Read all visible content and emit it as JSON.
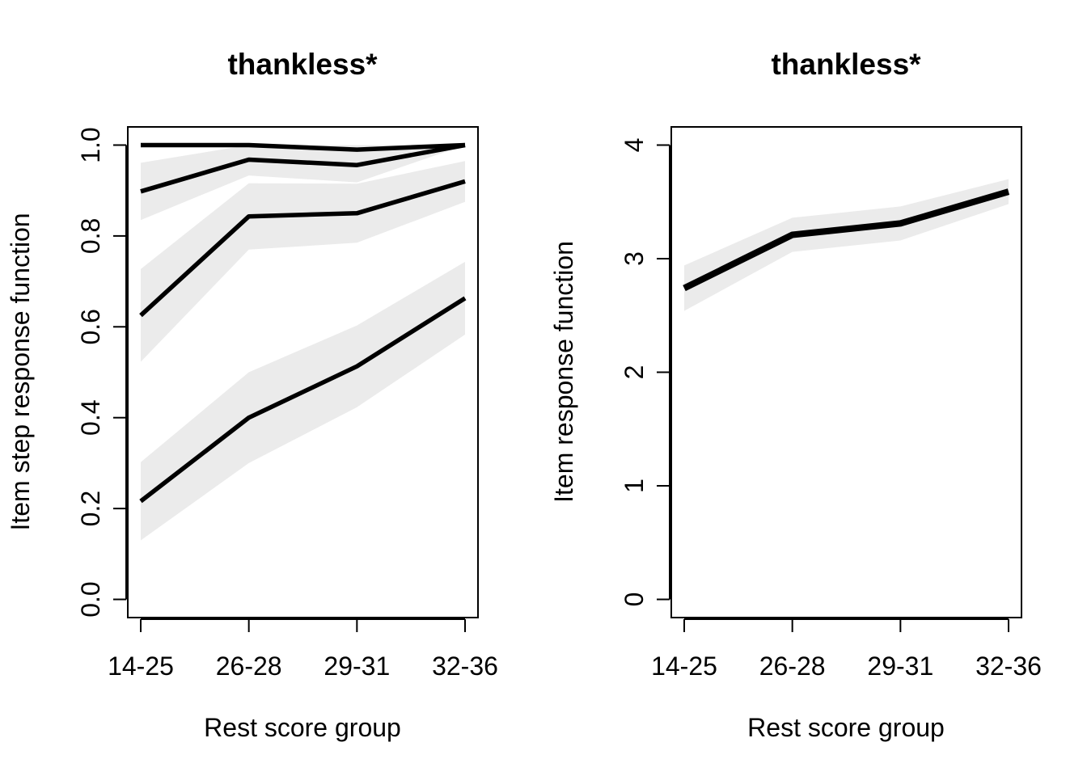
{
  "chart_data": [
    {
      "type": "line",
      "title": "thankless*",
      "xlabel": "Rest score group",
      "ylabel": "Item step response function",
      "categories": [
        "14-25",
        "26-28",
        "29-31",
        "32-36"
      ],
      "ylim": [
        -0.04,
        1.04
      ],
      "yticks": [
        "0.0",
        "0.2",
        "0.4",
        "0.6",
        "0.8",
        "1.0"
      ],
      "ytick_values": [
        0,
        0.2,
        0.4,
        0.6,
        0.8,
        1.0
      ],
      "confidence_bands": true,
      "series": [
        {
          "values": [
            1.0,
            1.0,
            0.99,
            1.0
          ],
          "band_lower": [
            1.0,
            0.995,
            0.985,
            1.0
          ],
          "band_upper": [
            1.0,
            1.0,
            1.0,
            1.0
          ]
        },
        {
          "values": [
            0.898,
            0.968,
            0.956,
            1.0
          ],
          "band_lower": [
            0.835,
            0.933,
            0.918,
            1.0
          ],
          "band_upper": [
            0.961,
            1.0,
            0.99,
            1.0
          ]
        },
        {
          "values": [
            0.625,
            0.843,
            0.85,
            0.92
          ],
          "band_lower": [
            0.523,
            0.77,
            0.785,
            0.875
          ],
          "band_upper": [
            0.727,
            0.916,
            0.915,
            0.965
          ]
        },
        {
          "values": [
            0.216,
            0.4,
            0.513,
            0.663
          ],
          "band_lower": [
            0.13,
            0.3,
            0.423,
            0.583
          ],
          "band_upper": [
            0.302,
            0.5,
            0.603,
            0.743
          ]
        }
      ],
      "line_color": "#000000",
      "band_color": "#ebebeb"
    },
    {
      "type": "line",
      "title": "thankless*",
      "xlabel": "Rest score group",
      "ylabel": "Item response function",
      "categories": [
        "14-25",
        "26-28",
        "29-31",
        "32-36"
      ],
      "ylim": [
        -0.16,
        4.16
      ],
      "yticks": [
        "0",
        "1",
        "2",
        "3",
        "4"
      ],
      "ytick_values": [
        0,
        1,
        2,
        3,
        4
      ],
      "confidence_bands": true,
      "series": [
        {
          "values": [
            2.74,
            3.21,
            3.31,
            3.59
          ],
          "band_lower": [
            2.54,
            3.06,
            3.16,
            3.48
          ],
          "band_upper": [
            2.94,
            3.36,
            3.46,
            3.7
          ]
        }
      ],
      "line_color": "#000000",
      "band_color": "#ebebeb"
    }
  ]
}
